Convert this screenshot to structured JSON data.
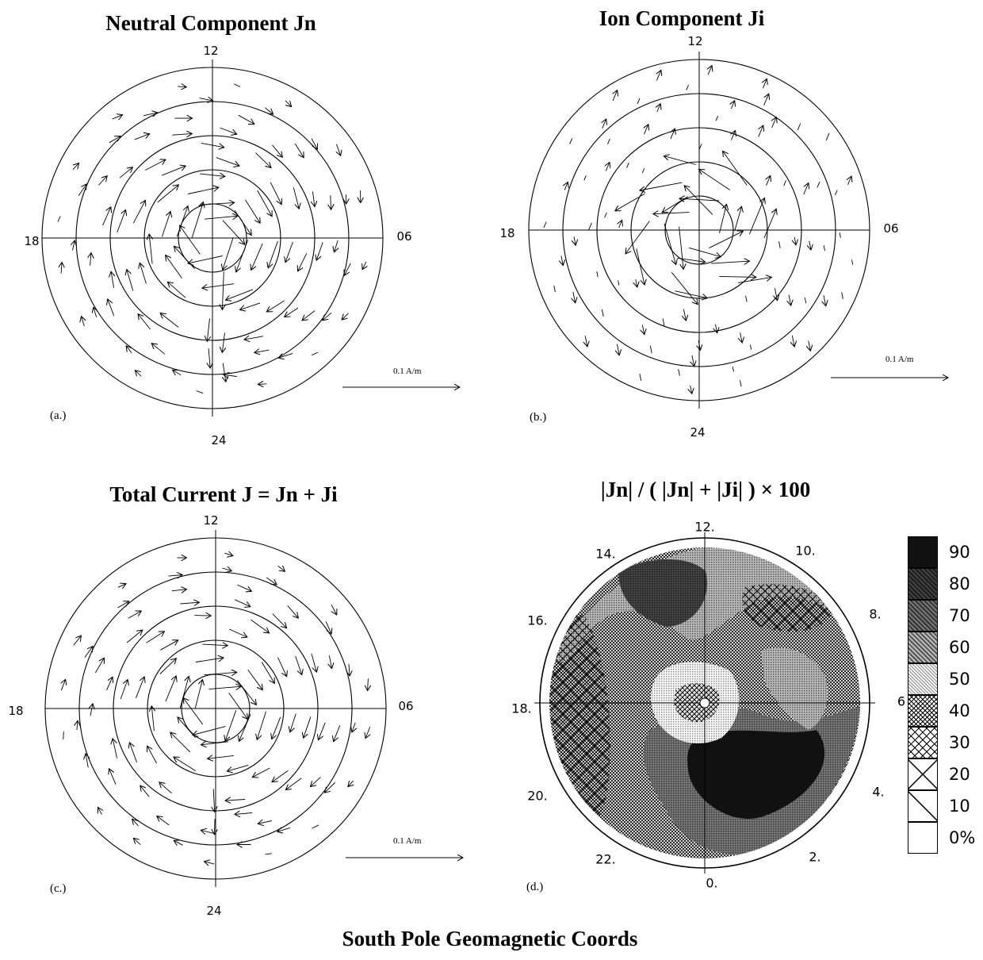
{
  "panels": [
    {
      "title": "Neutral Component  Jn",
      "label": "(a.)",
      "top": "12",
      "bottom": "24",
      "left": "18",
      "right": "06",
      "scale": "0.1 A/m"
    },
    {
      "title": "Ion Component  Ji",
      "label": "(b.)",
      "top": "12",
      "bottom": "24",
      "left": "18",
      "right": "06",
      "scale": "0.1 A/m"
    },
    {
      "title": "Total Current  J = Jn + Ji",
      "label": "(c.)",
      "top": "12",
      "bottom": "24",
      "left": "18",
      "right": "06",
      "scale": "0.1 A/m"
    }
  ],
  "ratio_panel": {
    "title": "|Jn| / ( |Jn| + |Ji| ) × 100",
    "label": "(d.)",
    "hour_ticks": [
      "12.",
      "10.",
      "8.",
      "6",
      "4.",
      "2.",
      "0.",
      "22.",
      "20.",
      "18.",
      "16.",
      "14."
    ]
  },
  "legend": {
    "levels": [
      "90",
      "80",
      "70",
      "60",
      "50",
      "40",
      "30",
      "20",
      "10",
      "0%"
    ]
  },
  "footer": "South Pole   Geomagnetic Coords",
  "colors": {
    "ink": "#000000",
    "background": "#ffffff"
  }
}
